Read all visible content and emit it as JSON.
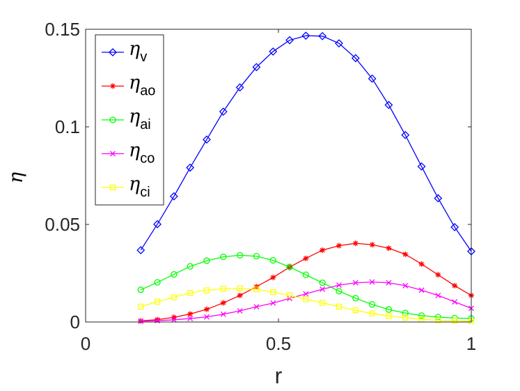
{
  "chart_data": {
    "type": "line",
    "title": "",
    "xlabel": "r",
    "ylabel": "η",
    "xlim": [
      0,
      1
    ],
    "ylim": [
      0,
      0.15
    ],
    "xticks": [
      0,
      0.5,
      1
    ],
    "xtick_labels": [
      "0",
      "0.5",
      "1"
    ],
    "yticks": [
      0,
      0.05,
      0.1,
      0.15
    ],
    "ytick_labels": [
      "0",
      "0.05",
      "0.1",
      "0.15"
    ],
    "grid": false,
    "legend_position": "top-left",
    "x": [
      0.143,
      0.186,
      0.229,
      0.271,
      0.314,
      0.357,
      0.4,
      0.443,
      0.486,
      0.529,
      0.571,
      0.614,
      0.657,
      0.7,
      0.743,
      0.786,
      0.829,
      0.871,
      0.914,
      0.957,
      1.0
    ],
    "series": [
      {
        "name": "v",
        "label_main": "η",
        "label_sub": "v",
        "color": "#0000ff",
        "marker": "diamond",
        "values": [
          0.0368,
          0.0501,
          0.0644,
          0.0791,
          0.0935,
          0.1078,
          0.1202,
          0.1306,
          0.1386,
          0.1444,
          0.1467,
          0.1465,
          0.1428,
          0.1352,
          0.1247,
          0.1112,
          0.0958,
          0.0797,
          0.0634,
          0.0486,
          0.0362
        ]
      },
      {
        "name": "ao",
        "label_main": "η",
        "label_sub": "ao",
        "color": "#ff0000",
        "marker": "asterisk",
        "values": [
          0.0006,
          0.0012,
          0.0024,
          0.0041,
          0.0065,
          0.0098,
          0.0136,
          0.0181,
          0.0228,
          0.0281,
          0.0326,
          0.0368,
          0.0391,
          0.0403,
          0.0396,
          0.0378,
          0.0347,
          0.0297,
          0.0242,
          0.0186,
          0.0136
        ]
      },
      {
        "name": "ai",
        "label_main": "η",
        "label_sub": "ai",
        "color": "#00ff00",
        "marker": "circle",
        "values": [
          0.0165,
          0.0203,
          0.0244,
          0.0285,
          0.0314,
          0.0334,
          0.0342,
          0.0337,
          0.0316,
          0.0282,
          0.0242,
          0.0201,
          0.0158,
          0.0122,
          0.009,
          0.0064,
          0.0046,
          0.0033,
          0.0025,
          0.002,
          0.0018
        ]
      },
      {
        "name": "co",
        "label_main": "η",
        "label_sub": "co",
        "color": "#ff00ff",
        "marker": "x",
        "values": [
          0.0004,
          0.0007,
          0.0011,
          0.0018,
          0.0026,
          0.004,
          0.0057,
          0.0078,
          0.0097,
          0.0121,
          0.0144,
          0.0168,
          0.0189,
          0.0201,
          0.0205,
          0.0201,
          0.0186,
          0.0163,
          0.0136,
          0.0103,
          0.007
        ]
      },
      {
        "name": "ci",
        "label_main": "η",
        "label_sub": "ci",
        "color": "#ffff00",
        "marker": "square",
        "values": [
          0.0079,
          0.0104,
          0.0127,
          0.0149,
          0.0162,
          0.017,
          0.0172,
          0.0167,
          0.0153,
          0.0136,
          0.0117,
          0.0098,
          0.0079,
          0.006,
          0.0044,
          0.0031,
          0.0022,
          0.0014,
          0.0009,
          0.0006,
          0.0004
        ]
      }
    ]
  }
}
